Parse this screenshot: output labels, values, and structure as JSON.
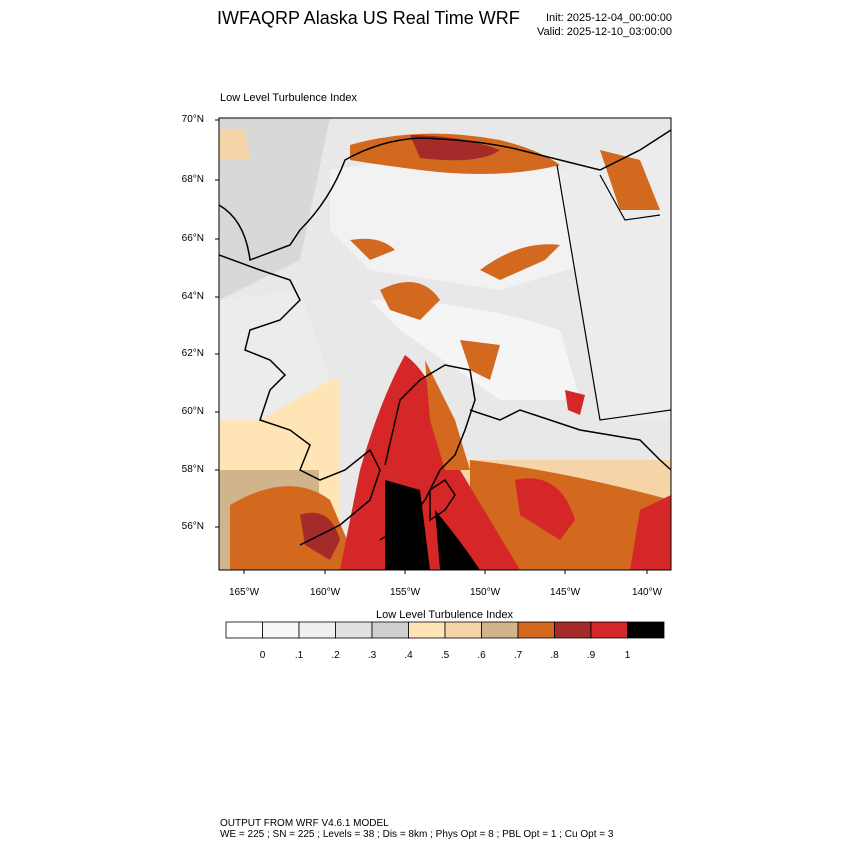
{
  "header": {
    "title": "IWFAQRP Alaska US Real Time WRF",
    "init": "Init: 2025-12-04_00:00:00",
    "valid": "Valid: 2025-12-10_03:00:00"
  },
  "map": {
    "title": "Low Level Turbulence Index",
    "lat_labels": [
      "70°N",
      "68°N",
      "66°N",
      "64°N",
      "62°N",
      "60°N",
      "58°N",
      "56°N"
    ],
    "lon_labels": [
      "165°W",
      "160°W",
      "155°W",
      "150°W",
      "145°W",
      "140°W"
    ]
  },
  "colorbar": {
    "title": "Low Level Turbulence Index",
    "colors": [
      "#ffffff",
      "#f7f7f7",
      "#efefef",
      "#e0e0e0",
      "#cfcfcf",
      "#ffe4b5",
      "#f5d5a8",
      "#d2b48c",
      "#d2691e",
      "#a52a2a",
      "#d62728",
      "#000000"
    ],
    "labels": [
      "0",
      ".1",
      ".2",
      ".3",
      ".4",
      ".5",
      ".6",
      ".7",
      ".8",
      ".9",
      "1"
    ]
  },
  "footer": {
    "line1": "OUTPUT FROM WRF V4.6.1 MODEL",
    "line2": "WE = 225 ; SN = 225 ; Levels = 38 ; Dis = 8km ; Phys Opt = 8 ; PBL Opt = 1 ; Cu Opt = 3"
  }
}
